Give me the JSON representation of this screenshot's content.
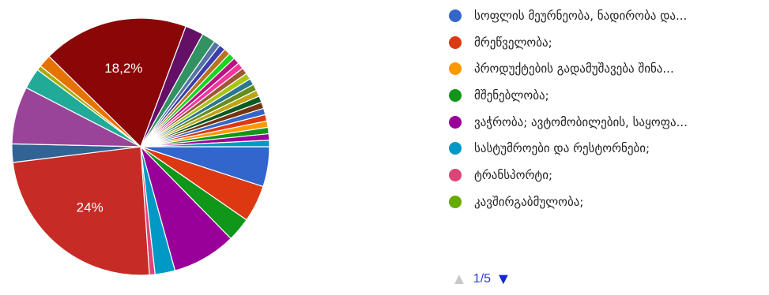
{
  "chart_data": {
    "type": "pie",
    "slices": [
      {
        "label": "სოფლის მეურნეობა, ნადირობა და...",
        "value": 5.0,
        "color": "#3366cc"
      },
      {
        "label": "მრეწველობა;",
        "value": 4.6,
        "color": "#dc3912"
      },
      {
        "label": "კავშირგაბმულობა;",
        "value": 3.0,
        "color": "#109618"
      },
      {
        "label": "",
        "value": 8.0,
        "color": "#990099"
      },
      {
        "label": "",
        "value": 2.5,
        "color": "#0099c6"
      },
      {
        "label": "",
        "value": 0.7,
        "color": "#dd4477"
      },
      {
        "label": "",
        "value": 24.0,
        "color": "#c62b25",
        "display_label": "24%"
      },
      {
        "label": "",
        "value": 2.3,
        "color": "#316395"
      },
      {
        "label": "",
        "value": 7.2,
        "color": "#994499"
      },
      {
        "label": "",
        "value": 2.6,
        "color": "#22aa99"
      },
      {
        "label": "",
        "value": 0.6,
        "color": "#aaaa11"
      },
      {
        "label": "",
        "value": 1.6,
        "color": "#e67300"
      },
      {
        "label": "",
        "value": 18.2,
        "color": "#8b0707",
        "display_label": "18,2%"
      },
      {
        "label": "",
        "value": 2.3,
        "color": "#651067"
      },
      {
        "label": "",
        "value": 1.7,
        "color": "#329262"
      },
      {
        "label": "",
        "value": 0.8,
        "color": "#5574a6"
      },
      {
        "label": "",
        "value": 0.8,
        "color": "#3b3eac"
      },
      {
        "label": "",
        "value": 0.8,
        "color": "#b77322"
      },
      {
        "label": "",
        "value": 0.8,
        "color": "#16d620"
      },
      {
        "label": "",
        "value": 0.8,
        "color": "#b91383"
      },
      {
        "label": "",
        "value": 0.8,
        "color": "#f4359e"
      },
      {
        "label": "",
        "value": 0.8,
        "color": "#9c5935"
      },
      {
        "label": "",
        "value": 0.8,
        "color": "#a9c413"
      },
      {
        "label": "",
        "value": 0.8,
        "color": "#2a778d"
      },
      {
        "label": "",
        "value": 0.8,
        "color": "#668d1c"
      },
      {
        "label": "",
        "value": 0.8,
        "color": "#bea413"
      },
      {
        "label": "",
        "value": 0.8,
        "color": "#0c5922"
      },
      {
        "label": "",
        "value": 0.8,
        "color": "#743411"
      },
      {
        "label": "",
        "value": 0.8,
        "color": "#3366cc"
      },
      {
        "label": "",
        "value": 0.8,
        "color": "#dc3912"
      },
      {
        "label": "",
        "value": 0.8,
        "color": "#ff9900"
      },
      {
        "label": "",
        "value": 0.8,
        "color": "#109618"
      },
      {
        "label": "",
        "value": 0.8,
        "color": "#990099"
      },
      {
        "label": "",
        "value": 0.8,
        "color": "#0099c6"
      }
    ]
  },
  "legend": {
    "items": [
      {
        "label": "სოფლის მეურნეობა, ნადირობა და...",
        "color": "#3366cc"
      },
      {
        "label": "მრეწველობა;",
        "color": "#dc3912"
      },
      {
        "label": "პროდუქტების გადამუშავება შინა...",
        "color": "#ff9900"
      },
      {
        "label": "მშენებლობა;",
        "color": "#109618"
      },
      {
        "label": "ვაჭრობა; ავტომობილების, საყოფა...",
        "color": "#990099"
      },
      {
        "label": "სასტუმროები და რესტორნები;",
        "color": "#0099c6"
      },
      {
        "label": "ტრანსპორტი;",
        "color": "#dd4477"
      },
      {
        "label": "კავშირგაბმულობა;",
        "color": "#66aa00"
      }
    ]
  },
  "pager": {
    "text": "1/5",
    "prev_icon": "▲",
    "next_icon": "▼"
  }
}
